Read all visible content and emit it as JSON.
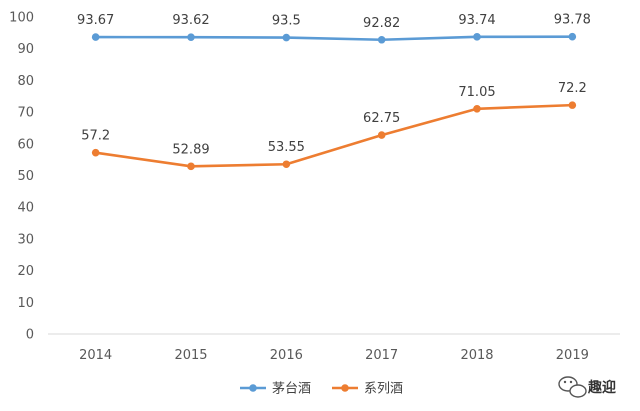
{
  "chart_data": {
    "type": "line",
    "title": "",
    "xlabel": "",
    "ylabel": "",
    "categories": [
      "2014",
      "2015",
      "2016",
      "2017",
      "2018",
      "2019"
    ],
    "series": [
      {
        "name": "茅台酒",
        "color": "#5b9bd5",
        "values": [
          93.67,
          93.62,
          93.5,
          92.82,
          93.74,
          93.78
        ],
        "labels": [
          "93.67",
          "93.62",
          "93.5",
          "92.82",
          "93.74",
          "93.78"
        ]
      },
      {
        "name": "系列酒",
        "color": "#ed7d31",
        "values": [
          57.2,
          52.89,
          53.55,
          62.75,
          71.05,
          72.2
        ],
        "labels": [
          "57.2",
          "52.89",
          "53.55",
          "62.75",
          "71.05",
          "72.2"
        ]
      }
    ],
    "ylim": [
      0,
      100
    ],
    "yticks": [
      0,
      10,
      20,
      30,
      40,
      50,
      60,
      70,
      80,
      90,
      100
    ],
    "grid": false,
    "legend_position": "bottom-center"
  },
  "watermark": {
    "text": "趣迎",
    "icon": "wechat-icon"
  }
}
